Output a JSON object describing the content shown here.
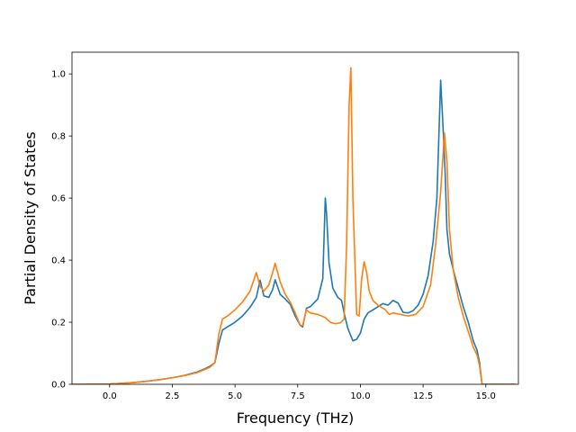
{
  "chart_data": {
    "type": "line",
    "title": "",
    "xlabel": "Frequency (THz)",
    "ylabel": "Partial Density of States",
    "xlim": [
      -1.5,
      16.3
    ],
    "ylim": [
      0.0,
      1.07
    ],
    "x_ticks": [
      0.0,
      2.5,
      5.0,
      7.5,
      10.0,
      12.5,
      15.0
    ],
    "x_tick_labels": [
      "0.0",
      "2.5",
      "5.0",
      "7.5",
      "10.0",
      "12.5",
      "15.0"
    ],
    "y_ticks": [
      0.0,
      0.2,
      0.4,
      0.6,
      0.8,
      1.0
    ],
    "y_tick_labels": [
      "0.0",
      "0.2",
      "0.4",
      "0.6",
      "0.8",
      "1.0"
    ],
    "grid": false,
    "legend": false,
    "colors": [
      "#1f77b4",
      "#ff7f0e"
    ],
    "series": [
      {
        "x": [
          -1.5,
          -1.0,
          0.0,
          0.5,
          1.0,
          1.5,
          2.0,
          2.5,
          3.0,
          3.5,
          3.8,
          4.0,
          4.2,
          4.35,
          4.5,
          4.7,
          5.0,
          5.3,
          5.6,
          5.85,
          6.0,
          6.15,
          6.35,
          6.5,
          6.6,
          6.8,
          7.0,
          7.2,
          7.4,
          7.6,
          7.7,
          7.85,
          8.0,
          8.3,
          8.5,
          8.6,
          8.65,
          8.75,
          8.9,
          9.1,
          9.25,
          9.35,
          9.5,
          9.7,
          9.85,
          10.0,
          10.15,
          10.3,
          10.6,
          10.9,
          11.1,
          11.3,
          11.5,
          11.7,
          11.9,
          12.1,
          12.3,
          12.5,
          12.7,
          12.9,
          13.05,
          13.2,
          13.3,
          13.38,
          13.45,
          13.55,
          13.7,
          13.9,
          14.1,
          14.3,
          14.5,
          14.65,
          14.75,
          14.85,
          15.0,
          16.2
        ],
        "values": [
          0.0,
          0.0,
          0.001,
          0.003,
          0.006,
          0.01,
          0.015,
          0.021,
          0.029,
          0.04,
          0.05,
          0.058,
          0.07,
          0.13,
          0.175,
          0.185,
          0.2,
          0.22,
          0.248,
          0.28,
          0.335,
          0.285,
          0.28,
          0.305,
          0.337,
          0.29,
          0.275,
          0.258,
          0.22,
          0.19,
          0.185,
          0.245,
          0.25,
          0.275,
          0.34,
          0.6,
          0.55,
          0.39,
          0.31,
          0.28,
          0.27,
          0.23,
          0.18,
          0.14,
          0.145,
          0.165,
          0.21,
          0.23,
          0.245,
          0.26,
          0.255,
          0.27,
          0.262,
          0.232,
          0.23,
          0.237,
          0.255,
          0.29,
          0.35,
          0.46,
          0.6,
          0.98,
          0.82,
          0.68,
          0.5,
          0.42,
          0.37,
          0.31,
          0.25,
          0.2,
          0.14,
          0.11,
          0.07,
          0.0,
          0.0,
          0.0
        ]
      },
      {
        "x": [
          -1.5,
          -1.0,
          0.0,
          0.5,
          1.0,
          1.5,
          2.0,
          2.5,
          3.0,
          3.5,
          3.8,
          4.0,
          4.2,
          4.35,
          4.5,
          4.7,
          5.0,
          5.3,
          5.6,
          5.85,
          6.0,
          6.15,
          6.35,
          6.5,
          6.6,
          6.8,
          7.0,
          7.2,
          7.4,
          7.6,
          7.7,
          7.85,
          8.0,
          8.3,
          8.6,
          8.8,
          9.0,
          9.2,
          9.35,
          9.45,
          9.55,
          9.62,
          9.7,
          9.85,
          9.95,
          10.05,
          10.15,
          10.25,
          10.35,
          10.5,
          10.7,
          10.9,
          11.0,
          11.15,
          11.3,
          11.6,
          11.9,
          12.2,
          12.5,
          12.8,
          13.0,
          13.2,
          13.35,
          13.45,
          13.55,
          13.7,
          13.9,
          14.1,
          14.3,
          14.5,
          14.65,
          14.75,
          14.85,
          15.0,
          16.2
        ],
        "values": [
          0.0,
          0.0,
          0.001,
          0.003,
          0.006,
          0.01,
          0.015,
          0.021,
          0.028,
          0.038,
          0.048,
          0.055,
          0.07,
          0.16,
          0.21,
          0.22,
          0.24,
          0.265,
          0.3,
          0.36,
          0.315,
          0.3,
          0.32,
          0.36,
          0.39,
          0.33,
          0.29,
          0.265,
          0.23,
          0.19,
          0.19,
          0.24,
          0.23,
          0.225,
          0.215,
          0.2,
          0.195,
          0.198,
          0.21,
          0.45,
          0.9,
          1.02,
          0.6,
          0.225,
          0.22,
          0.34,
          0.395,
          0.36,
          0.3,
          0.27,
          0.255,
          0.245,
          0.24,
          0.225,
          0.23,
          0.225,
          0.22,
          0.225,
          0.25,
          0.32,
          0.45,
          0.62,
          0.81,
          0.72,
          0.5,
          0.37,
          0.28,
          0.22,
          0.17,
          0.12,
          0.095,
          0.06,
          0.0,
          0.0,
          0.0
        ]
      }
    ]
  }
}
